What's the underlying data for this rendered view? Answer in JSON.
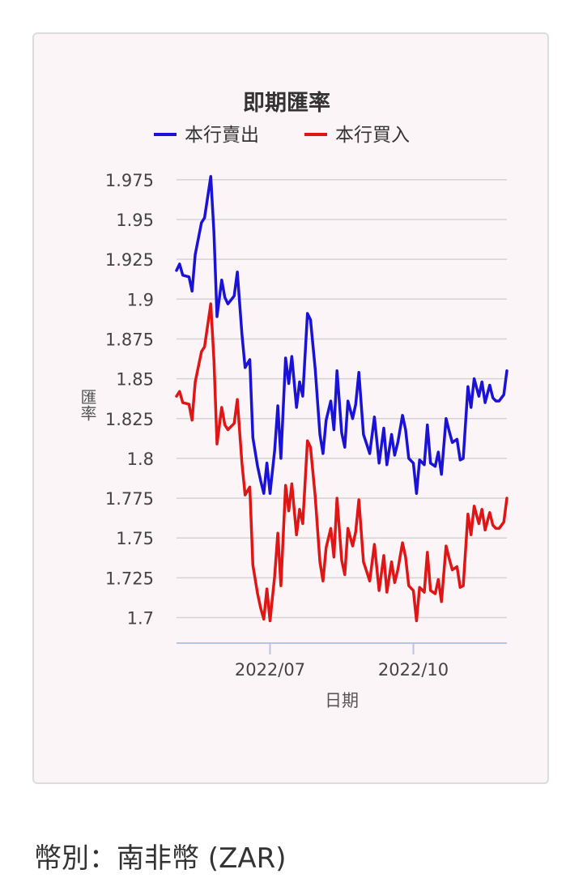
{
  "footer": {
    "label": "幣別",
    "separator": "：",
    "currency": "南非幣 (ZAR)"
  },
  "colors": {
    "sell": "#1a12d6",
    "buy": "#e01515",
    "grid": "#d4d4d4",
    "axis": "#b8c4e0",
    "text": "#444444"
  },
  "chart_data": {
    "type": "line",
    "title": "即期匯率",
    "xlabel": "日期",
    "ylabel": "匯率",
    "ylim": [
      1.684,
      1.98
    ],
    "yticks": [
      "1.7",
      "1.725",
      "1.75",
      "1.775",
      "1.8",
      "1.825",
      "1.85",
      "1.875",
      "1.9",
      "1.925",
      "1.95",
      "1.975"
    ],
    "ytick_values": [
      1.7,
      1.725,
      1.75,
      1.775,
      1.8,
      1.825,
      1.85,
      1.875,
      1.9,
      1.925,
      1.95,
      1.975
    ],
    "xticks": [
      {
        "label": "2022/07",
        "date": "2022-07-01"
      },
      {
        "label": "2022/10",
        "date": "2022-10-01"
      }
    ],
    "x_range": [
      "2022-05-02",
      "2022-11-30"
    ],
    "grid": true,
    "legend": "top",
    "x": [
      "2022-05-02",
      "2022-05-04",
      "2022-05-06",
      "2022-05-10",
      "2022-05-12",
      "2022-05-14",
      "2022-05-18",
      "2022-05-20",
      "2022-05-24",
      "2022-05-26",
      "2022-05-28",
      "2022-05-31",
      "2022-06-02",
      "2022-06-04",
      "2022-06-08",
      "2022-06-10",
      "2022-06-13",
      "2022-06-15",
      "2022-06-18",
      "2022-06-20",
      "2022-06-23",
      "2022-06-25",
      "2022-06-27",
      "2022-06-29",
      "2022-07-01",
      "2022-07-04",
      "2022-07-06",
      "2022-07-08",
      "2022-07-11",
      "2022-07-13",
      "2022-07-15",
      "2022-07-18",
      "2022-07-20",
      "2022-07-22",
      "2022-07-25",
      "2022-07-27",
      "2022-07-30",
      "2022-08-02",
      "2022-08-04",
      "2022-08-06",
      "2022-08-09",
      "2022-08-11",
      "2022-08-13",
      "2022-08-16",
      "2022-08-18",
      "2022-08-20",
      "2022-08-23",
      "2022-08-25",
      "2022-08-27",
      "2022-08-30",
      "2022-09-01",
      "2022-09-03",
      "2022-09-06",
      "2022-09-09",
      "2022-09-12",
      "2022-09-14",
      "2022-09-17",
      "2022-09-19",
      "2022-09-21",
      "2022-09-24",
      "2022-09-26",
      "2022-09-28",
      "2022-10-01",
      "2022-10-03",
      "2022-10-05",
      "2022-10-08",
      "2022-10-10",
      "2022-10-12",
      "2022-10-15",
      "2022-10-17",
      "2022-10-19",
      "2022-10-22",
      "2022-10-24",
      "2022-10-26",
      "2022-10-29",
      "2022-10-31",
      "2022-11-02",
      "2022-11-05",
      "2022-11-07",
      "2022-11-09",
      "2022-11-12",
      "2022-11-14",
      "2022-11-16",
      "2022-11-19",
      "2022-11-21",
      "2022-11-23",
      "2022-11-25",
      "2022-11-28",
      "2022-11-30"
    ],
    "series": [
      {
        "name": "本行賣出",
        "color": "#1a12d6",
        "values": [
          1.918,
          1.922,
          1.915,
          1.914,
          1.905,
          1.928,
          1.948,
          1.951,
          1.977,
          1.942,
          1.889,
          1.912,
          1.901,
          1.897,
          1.902,
          1.917,
          1.878,
          1.857,
          1.862,
          1.813,
          1.795,
          1.786,
          1.778,
          1.797,
          1.778,
          1.805,
          1.833,
          1.8,
          1.863,
          1.847,
          1.864,
          1.832,
          1.848,
          1.839,
          1.891,
          1.887,
          1.856,
          1.815,
          1.803,
          1.824,
          1.836,
          1.818,
          1.855,
          1.816,
          1.807,
          1.836,
          1.825,
          1.834,
          1.854,
          1.815,
          1.809,
          1.803,
          1.826,
          1.797,
          1.819,
          1.796,
          1.815,
          1.802,
          1.81,
          1.827,
          1.818,
          1.8,
          1.797,
          1.778,
          1.799,
          1.796,
          1.821,
          1.797,
          1.795,
          1.804,
          1.79,
          1.825,
          1.817,
          1.81,
          1.812,
          1.799,
          1.8,
          1.845,
          1.832,
          1.85,
          1.839,
          1.848,
          1.835,
          1.846,
          1.838,
          1.836,
          1.836,
          1.84,
          1.855
        ]
      },
      {
        "name": "本行買入",
        "color": "#e01515",
        "values": [
          1.839,
          1.842,
          1.835,
          1.834,
          1.824,
          1.848,
          1.867,
          1.87,
          1.897,
          1.862,
          1.809,
          1.832,
          1.821,
          1.818,
          1.822,
          1.837,
          1.797,
          1.777,
          1.782,
          1.733,
          1.715,
          1.706,
          1.699,
          1.718,
          1.698,
          1.726,
          1.753,
          1.72,
          1.783,
          1.767,
          1.784,
          1.752,
          1.768,
          1.759,
          1.811,
          1.807,
          1.776,
          1.735,
          1.723,
          1.744,
          1.756,
          1.738,
          1.775,
          1.736,
          1.727,
          1.756,
          1.745,
          1.754,
          1.774,
          1.735,
          1.729,
          1.723,
          1.746,
          1.717,
          1.739,
          1.716,
          1.735,
          1.722,
          1.73,
          1.747,
          1.738,
          1.72,
          1.717,
          1.698,
          1.719,
          1.716,
          1.741,
          1.717,
          1.715,
          1.724,
          1.71,
          1.745,
          1.737,
          1.73,
          1.732,
          1.719,
          1.72,
          1.765,
          1.752,
          1.77,
          1.759,
          1.768,
          1.755,
          1.766,
          1.758,
          1.756,
          1.756,
          1.76,
          1.775
        ]
      }
    ]
  }
}
